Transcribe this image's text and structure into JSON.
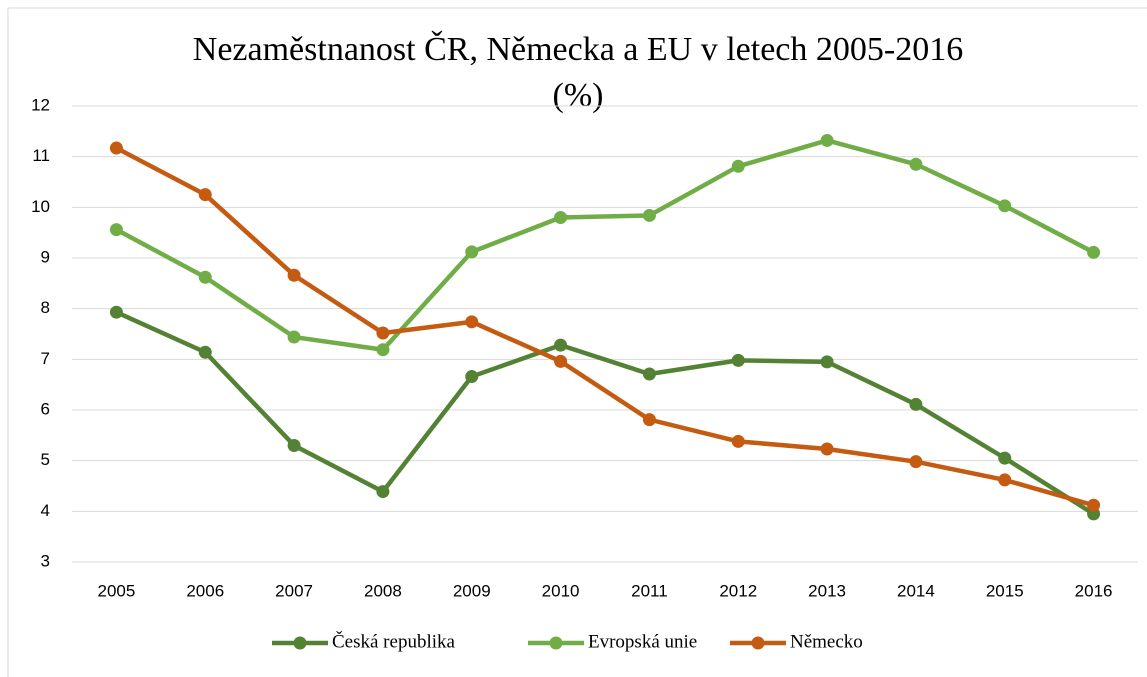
{
  "chart_data": {
    "type": "line",
    "title": "Nezaměstnanost ČR, Německa a EU v letech 2005-2016",
    "subtitle": "(%)",
    "categories": [
      "2005",
      "2006",
      "2007",
      "2008",
      "2009",
      "2010",
      "2011",
      "2012",
      "2013",
      "2014",
      "2015",
      "2016"
    ],
    "series": [
      {
        "name": "Česká republika",
        "color": "#548235",
        "values": [
          7.93,
          7.14,
          5.3,
          4.39,
          6.66,
          7.28,
          6.71,
          6.98,
          6.95,
          6.11,
          5.05,
          3.95
        ]
      },
      {
        "name": "Evropská unie",
        "color": "#70ad47",
        "values": [
          9.56,
          8.62,
          7.44,
          7.19,
          9.12,
          9.8,
          9.84,
          10.81,
          11.32,
          10.85,
          10.03,
          9.11
        ]
      },
      {
        "name": "Německo",
        "color": "#c55a11",
        "values": [
          11.17,
          10.25,
          8.66,
          7.52,
          7.74,
          6.96,
          5.81,
          5.38,
          5.23,
          4.98,
          4.62,
          4.12
        ]
      }
    ],
    "ylim": [
      3,
      12
    ],
    "yticks": [
      3,
      4,
      5,
      6,
      7,
      8,
      9,
      10,
      11,
      12
    ],
    "grid": true,
    "legend": "bottom"
  }
}
